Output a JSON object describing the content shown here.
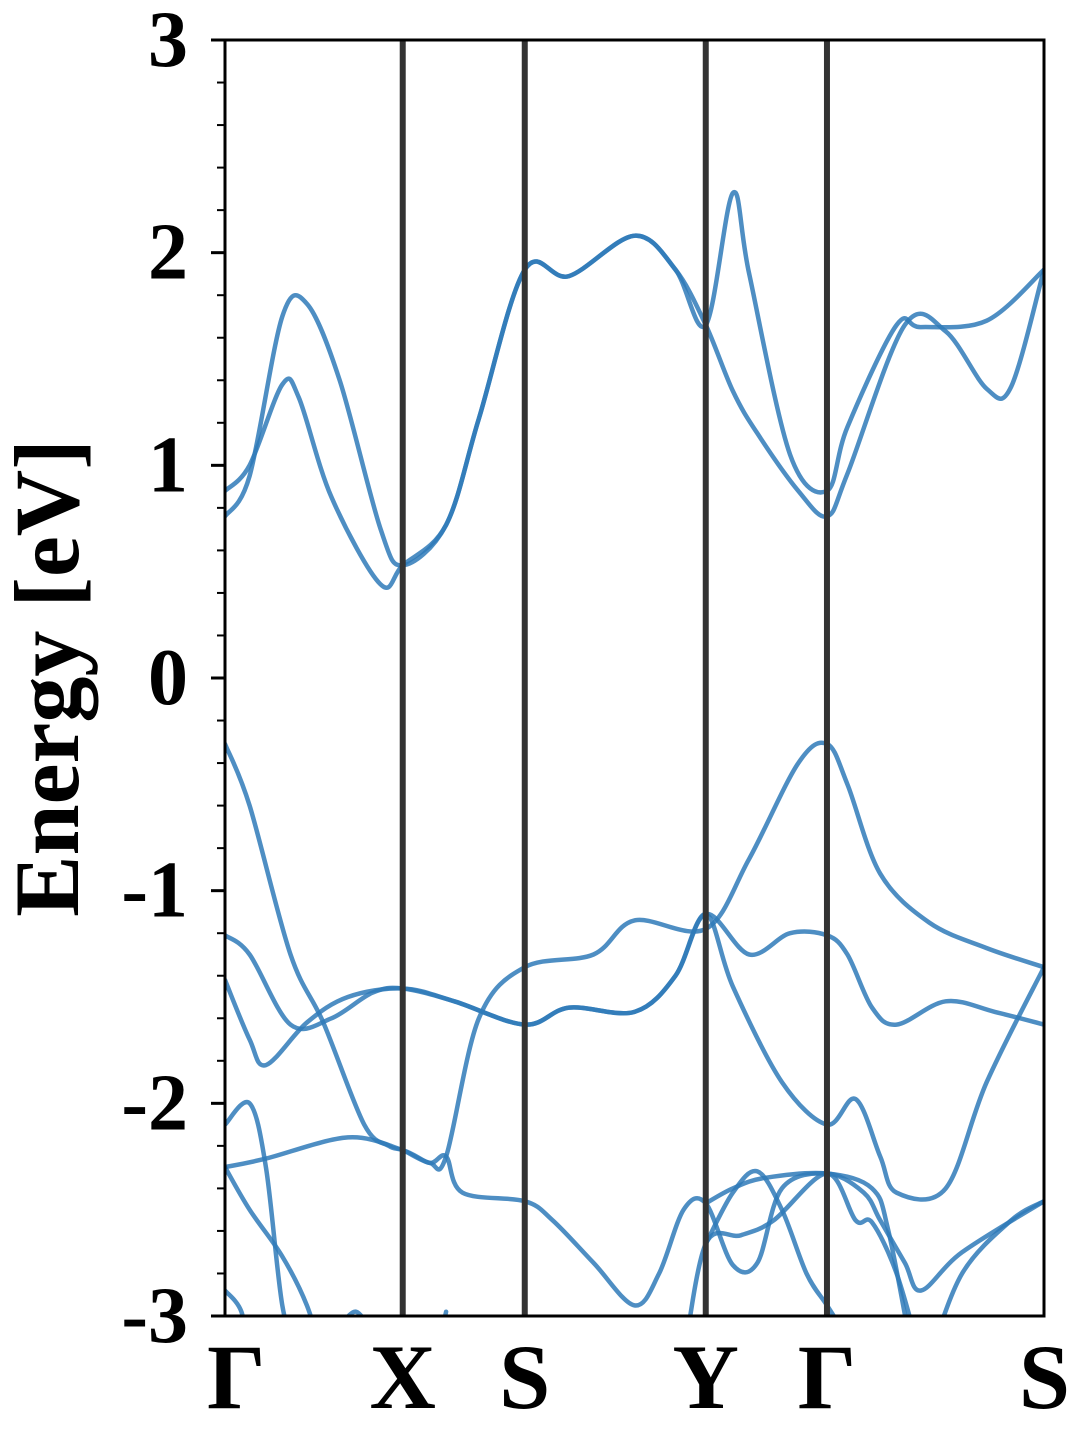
{
  "chart_data": {
    "type": "line",
    "title": "",
    "xlabel": "",
    "ylabel": "Energy [eV]",
    "ylim": [
      -3,
      3
    ],
    "yticks": [
      3,
      2,
      1,
      0,
      -1,
      -2,
      -3
    ],
    "y_minor_step": 0.2,
    "grid": false,
    "legend": "none",
    "line_color": "#2f7ab8",
    "kpath_line_color": "#333333",
    "kpoints": [
      {
        "label": "Γ",
        "x": 0.0
      },
      {
        "label": "X",
        "x": 0.217
      },
      {
        "label": "S",
        "x": 0.366
      },
      {
        "label": "Y",
        "x": 0.587
      },
      {
        "label": "Γ",
        "x": 0.735
      },
      {
        "label": "S",
        "x": 1.0
      }
    ],
    "series": [
      {
        "values": [
          [
            0.0,
            0.88
          ],
          [
            0.03,
            1.0
          ],
          [
            0.07,
            1.38
          ],
          [
            0.09,
            1.32
          ],
          [
            0.13,
            0.85
          ],
          [
            0.19,
            0.44
          ],
          [
            0.217,
            0.53
          ],
          [
            0.27,
            0.72
          ],
          [
            0.31,
            1.22
          ],
          [
            0.366,
            1.92
          ],
          [
            0.42,
            1.89
          ],
          [
            0.5,
            2.08
          ],
          [
            0.55,
            1.92
          ],
          [
            0.587,
            1.66
          ],
          [
            0.62,
            1.35
          ],
          [
            0.65,
            1.15
          ],
          [
            0.7,
            0.88
          ],
          [
            0.735,
            0.76
          ],
          [
            0.76,
            0.96
          ],
          [
            0.83,
            1.66
          ],
          [
            0.88,
            1.63
          ],
          [
            0.93,
            1.36
          ],
          [
            0.96,
            1.37
          ],
          [
            1.0,
            1.92
          ]
        ]
      },
      {
        "values": [
          [
            0.0,
            0.76
          ],
          [
            0.03,
            0.95
          ],
          [
            0.07,
            1.7
          ],
          [
            0.1,
            1.76
          ],
          [
            0.14,
            1.4
          ],
          [
            0.19,
            0.7
          ],
          [
            0.217,
            0.53
          ],
          [
            0.27,
            0.72
          ],
          [
            0.31,
            1.22
          ],
          [
            0.366,
            1.92
          ],
          [
            0.42,
            1.89
          ],
          [
            0.5,
            2.08
          ],
          [
            0.55,
            1.92
          ],
          [
            0.587,
            1.66
          ],
          [
            0.62,
            2.28
          ],
          [
            0.64,
            1.9
          ],
          [
            0.69,
            1.05
          ],
          [
            0.735,
            0.88
          ],
          [
            0.76,
            1.18
          ],
          [
            0.82,
            1.66
          ],
          [
            0.85,
            1.65
          ],
          [
            0.93,
            1.68
          ],
          [
            1.0,
            1.92
          ]
        ]
      },
      {
        "values": [
          [
            0.0,
            -0.31
          ],
          [
            0.03,
            -0.6
          ],
          [
            0.08,
            -1.3
          ],
          [
            0.12,
            -1.62
          ],
          [
            0.17,
            -2.1
          ],
          [
            0.2,
            -2.2
          ],
          [
            0.217,
            -2.22
          ],
          [
            0.25,
            -2.28
          ],
          [
            0.27,
            -2.25
          ],
          [
            0.31,
            -1.6
          ],
          [
            0.366,
            -1.36
          ],
          [
            0.45,
            -1.3
          ],
          [
            0.5,
            -1.14
          ],
          [
            0.587,
            -1.18
          ],
          [
            0.64,
            -0.85
          ],
          [
            0.7,
            -0.4
          ],
          [
            0.735,
            -0.31
          ],
          [
            0.76,
            -0.5
          ],
          [
            0.8,
            -0.92
          ],
          [
            0.86,
            -1.15
          ],
          [
            0.93,
            -1.27
          ],
          [
            1.0,
            -1.36
          ]
        ]
      },
      {
        "values": [
          [
            0.0,
            -1.21
          ],
          [
            0.03,
            -1.3
          ],
          [
            0.08,
            -1.63
          ],
          [
            0.13,
            -1.6
          ],
          [
            0.18,
            -1.48
          ],
          [
            0.217,
            -1.46
          ],
          [
            0.28,
            -1.52
          ],
          [
            0.366,
            -1.63
          ],
          [
            0.42,
            -1.55
          ],
          [
            0.5,
            -1.57
          ],
          [
            0.55,
            -1.4
          ],
          [
            0.587,
            -1.11
          ],
          [
            0.64,
            -1.3
          ],
          [
            0.69,
            -1.2
          ],
          [
            0.735,
            -1.21
          ],
          [
            0.76,
            -1.3
          ],
          [
            0.79,
            -1.55
          ],
          [
            0.82,
            -1.63
          ],
          [
            0.88,
            -1.52
          ],
          [
            0.94,
            -1.57
          ],
          [
            1.0,
            -1.63
          ]
        ]
      },
      {
        "values": [
          [
            0.0,
            -1.42
          ],
          [
            0.03,
            -1.7
          ],
          [
            0.05,
            -1.82
          ],
          [
            0.1,
            -1.62
          ],
          [
            0.15,
            -1.5
          ],
          [
            0.217,
            -1.46
          ],
          [
            0.28,
            -1.52
          ],
          [
            0.366,
            -1.63
          ],
          [
            0.42,
            -1.55
          ],
          [
            0.5,
            -1.57
          ],
          [
            0.55,
            -1.4
          ],
          [
            0.587,
            -1.11
          ],
          [
            0.62,
            -1.45
          ],
          [
            0.68,
            -1.9
          ],
          [
            0.735,
            -2.1
          ],
          [
            0.77,
            -1.98
          ],
          [
            0.8,
            -2.25
          ],
          [
            0.82,
            -2.42
          ],
          [
            0.88,
            -2.4
          ],
          [
            0.93,
            -1.9
          ],
          [
            1.0,
            -1.36
          ]
        ]
      },
      {
        "values": [
          [
            0.0,
            -2.1
          ],
          [
            0.03,
            -2.0
          ],
          [
            0.05,
            -2.3
          ],
          [
            0.07,
            -2.95
          ],
          [
            0.09,
            -3.2
          ]
        ]
      },
      {
        "values": [
          [
            0.0,
            -2.3
          ],
          [
            0.05,
            -2.26
          ],
          [
            0.15,
            -2.16
          ],
          [
            0.217,
            -2.22
          ],
          [
            0.25,
            -2.28
          ],
          [
            0.27,
            -2.25
          ],
          [
            0.29,
            -2.42
          ],
          [
            0.366,
            -2.46
          ],
          [
            0.4,
            -2.55
          ],
          [
            0.45,
            -2.75
          ],
          [
            0.5,
            -2.95
          ],
          [
            0.53,
            -2.8
          ],
          [
            0.56,
            -2.5
          ],
          [
            0.587,
            -2.47
          ],
          [
            0.62,
            -2.76
          ],
          [
            0.65,
            -2.75
          ],
          [
            0.68,
            -2.4
          ],
          [
            0.735,
            -2.33
          ],
          [
            0.78,
            -2.42
          ],
          [
            0.8,
            -2.55
          ],
          [
            0.83,
            -2.75
          ],
          [
            0.85,
            -2.88
          ],
          [
            0.9,
            -2.7
          ],
          [
            1.0,
            -2.46
          ]
        ]
      },
      {
        "values": [
          [
            0.0,
            -2.3
          ],
          [
            0.03,
            -2.5
          ],
          [
            0.07,
            -2.72
          ],
          [
            0.1,
            -2.95
          ],
          [
            0.12,
            -3.2
          ]
        ]
      },
      {
        "values": [
          [
            0.0,
            -2.88
          ],
          [
            0.02,
            -2.98
          ],
          [
            0.03,
            -3.2
          ]
        ]
      },
      {
        "values": [
          [
            0.587,
            -2.47
          ],
          [
            0.62,
            -2.4
          ],
          [
            0.66,
            -2.35
          ],
          [
            0.735,
            -2.33
          ],
          [
            0.79,
            -2.4
          ],
          [
            0.81,
            -2.6
          ],
          [
            0.84,
            -3.2
          ]
        ]
      },
      {
        "values": [
          [
            0.587,
            -2.66
          ],
          [
            0.62,
            -2.42
          ],
          [
            0.65,
            -2.32
          ],
          [
            0.68,
            -2.5
          ],
          [
            0.71,
            -2.8
          ],
          [
            0.735,
            -2.95
          ],
          [
            0.76,
            -3.1
          ]
        ]
      },
      {
        "values": [
          [
            0.56,
            -3.2
          ],
          [
            0.587,
            -2.66
          ],
          [
            0.63,
            -2.62
          ],
          [
            0.67,
            -2.55
          ],
          [
            0.735,
            -2.33
          ],
          [
            0.77,
            -2.55
          ],
          [
            0.79,
            -2.56
          ],
          [
            0.82,
            -2.8
          ],
          [
            0.85,
            -3.2
          ]
        ]
      },
      {
        "values": [
          [
            0.86,
            -3.2
          ],
          [
            0.9,
            -2.8
          ],
          [
            0.96,
            -2.55
          ],
          [
            1.0,
            -2.46
          ]
        ]
      },
      {
        "values": [
          [
            0.14,
            -3.05
          ],
          [
            0.16,
            -2.98
          ],
          [
            0.18,
            -3.08
          ]
        ]
      },
      {
        "values": [
          [
            0.26,
            -3.15
          ],
          [
            0.27,
            -2.98
          ]
        ]
      }
    ]
  }
}
